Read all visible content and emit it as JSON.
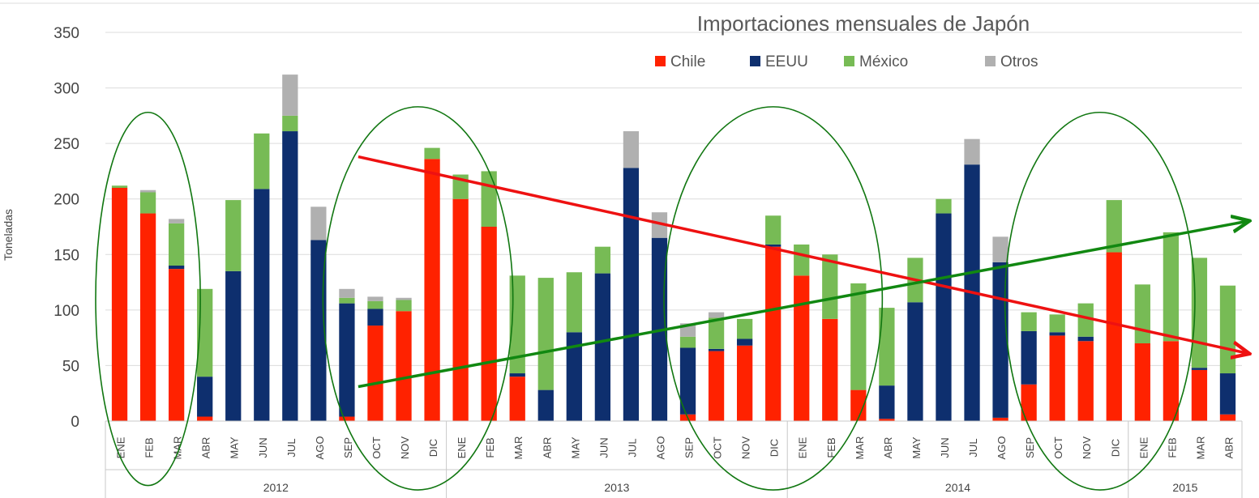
{
  "chart_data": {
    "type": "bar",
    "stacked": true,
    "title": "Importaciones mensuales de Japón",
    "ylabel": "Toneladas",
    "ylim": [
      0,
      350
    ],
    "yticks": [
      0,
      50,
      100,
      150,
      200,
      250,
      300,
      350
    ],
    "grid": true,
    "legend_position": "top-right",
    "years": [
      {
        "label": "2012",
        "months": 12
      },
      {
        "label": "2013",
        "months": 12
      },
      {
        "label": "2014",
        "months": 12
      },
      {
        "label": "2015",
        "months": 4
      }
    ],
    "categories": [
      "ENE",
      "FEB",
      "MAR",
      "ABR",
      "MAY",
      "JUN",
      "JUL",
      "AGO",
      "SEP",
      "OCT",
      "NOV",
      "DIC",
      "ENE",
      "FEB",
      "MAR",
      "ABR",
      "MAY",
      "JUN",
      "JUL",
      "AGO",
      "SEP",
      "OCT",
      "NOV",
      "DIC",
      "ENE",
      "FEB",
      "MAR",
      "ABR",
      "MAY",
      "JUN",
      "JUL",
      "AGO",
      "SEP",
      "OCT",
      "NOV",
      "DIC",
      "ENE",
      "FEB",
      "MAR",
      "ABR"
    ],
    "series": [
      {
        "name": "Chile",
        "color": "#ff2200",
        "values": [
          210,
          187,
          137,
          4,
          0,
          0,
          0,
          0,
          4,
          86,
          99,
          236,
          200,
          175,
          40,
          0,
          0,
          0,
          0,
          0,
          6,
          63,
          68,
          157,
          131,
          92,
          28,
          2,
          0,
          0,
          0,
          3,
          33,
          77,
          72,
          152,
          70,
          72,
          46,
          6
        ]
      },
      {
        "name": "EEUU",
        "color": "#0e2f6e",
        "values": [
          0,
          0,
          3,
          36,
          135,
          209,
          261,
          163,
          102,
          15,
          0,
          0,
          0,
          0,
          3,
          28,
          80,
          133,
          228,
          165,
          60,
          2,
          6,
          2,
          0,
          0,
          0,
          30,
          107,
          187,
          231,
          140,
          48,
          3,
          4,
          0,
          0,
          0,
          2,
          37
        ]
      },
      {
        "name": "México",
        "color": "#77bb55",
        "values": [
          2,
          19,
          38,
          79,
          64,
          50,
          14,
          0,
          5,
          7,
          10,
          10,
          22,
          50,
          88,
          101,
          54,
          24,
          0,
          0,
          10,
          28,
          18,
          26,
          28,
          58,
          96,
          70,
          40,
          13,
          0,
          0,
          17,
          16,
          30,
          47,
          53,
          98,
          99,
          79
        ]
      },
      {
        "name": "Otros",
        "color": "#b0b0b0",
        "values": [
          0,
          2,
          4,
          0,
          0,
          0,
          37,
          30,
          8,
          4,
          2,
          0,
          0,
          0,
          0,
          0,
          0,
          0,
          33,
          23,
          12,
          5,
          0,
          0,
          0,
          0,
          0,
          0,
          0,
          0,
          23,
          23,
          0,
          0,
          0,
          0,
          0,
          0,
          0,
          0
        ]
      }
    ],
    "annotations": {
      "trend_lines": [
        {
          "name": "declining",
          "color": "#ee1111",
          "from": {
            "x": 8.9,
            "y": 238
          },
          "to": {
            "x": 40.2,
            "y": 61
          },
          "arrow": true
        },
        {
          "name": "rising",
          "color": "#118811",
          "from": {
            "x": 8.9,
            "y": 31
          },
          "to": {
            "x": 40.2,
            "y": 180
          },
          "arrow": true
        }
      ],
      "ellipses": [
        {
          "name": "ellipse-2012-ene-mar",
          "color": "#117711",
          "from_index": 0,
          "to_index": 2,
          "ymin": -58,
          "ymax": 278
        },
        {
          "name": "ellipse-2012-oct-2013-feb",
          "color": "#117711",
          "from_index": 8,
          "to_index": 13,
          "ymin": -62,
          "ymax": 283
        },
        {
          "name": "ellipse-2013-oct-2014-mar",
          "color": "#117711",
          "from_index": 20,
          "to_index": 26,
          "ymin": -62,
          "ymax": 283
        },
        {
          "name": "ellipse-2014-sep-2015-mar",
          "color": "#117711",
          "from_index": 32,
          "to_index": 37,
          "ymin": -62,
          "ymax": 278
        }
      ]
    }
  }
}
